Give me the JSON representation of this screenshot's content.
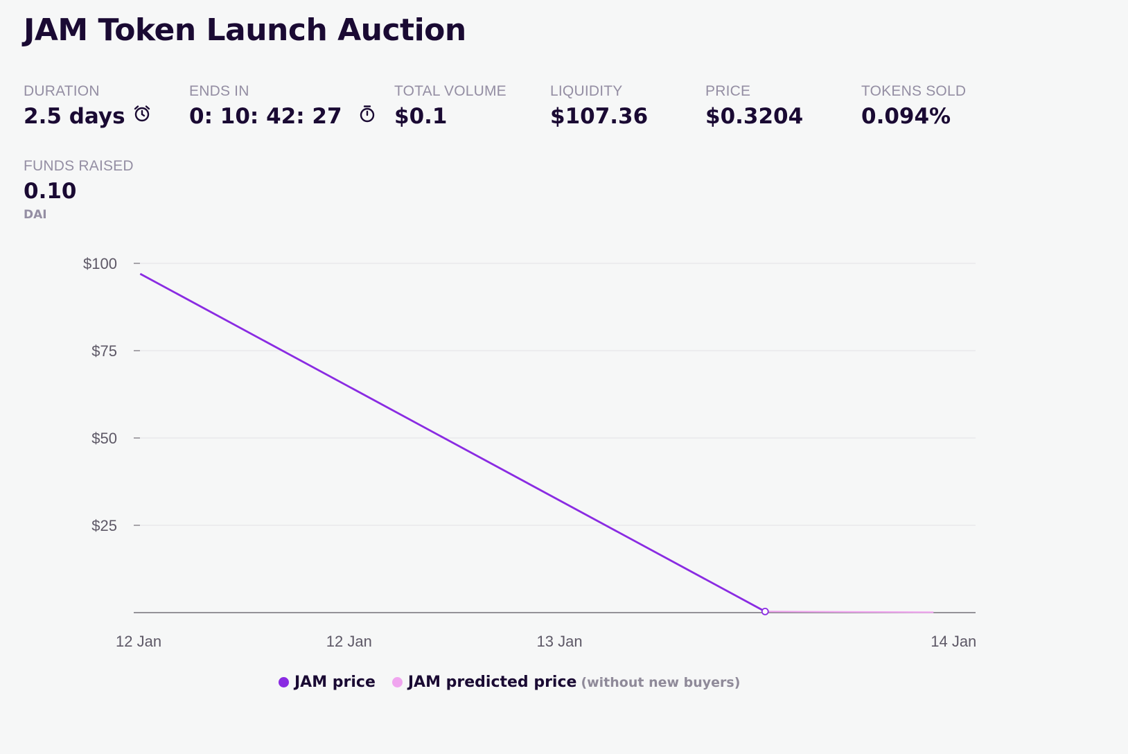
{
  "page": {
    "title": "JAM Token Launch Auction"
  },
  "stats": {
    "duration": {
      "label": "DURATION",
      "value": "2.5 days"
    },
    "ends_in": {
      "label": "ENDS IN",
      "value": "0: 10: 42: 27"
    },
    "total_volume": {
      "label": "TOTAL VOLUME",
      "value": "$0.1"
    },
    "liquidity": {
      "label": "LIQUIDITY",
      "value": "$107.36"
    },
    "price": {
      "label": "PRICE",
      "value": "$0.3204"
    },
    "tokens_sold": {
      "label": "TOKENS SOLD",
      "value": "0.094%"
    },
    "funds_raised": {
      "label": "FUNDS RAISED",
      "value": "0.10",
      "unit": "DAI"
    }
  },
  "icons": {
    "duration": "alarm-clock-icon",
    "ends_in": "stopwatch-icon"
  },
  "colors": {
    "jam_price": "#8a2be2",
    "jam_predicted_price": "#f0a5ef",
    "grid": "#e5e5e8",
    "axis": "#737078"
  },
  "chart_data": {
    "type": "line",
    "y_ticks": [
      {
        "value": 100,
        "label": "$100"
      },
      {
        "value": 75,
        "label": "$75"
      },
      {
        "value": 50,
        "label": "$50"
      },
      {
        "value": 25,
        "label": "$25"
      }
    ],
    "ylim": [
      0,
      100
    ],
    "x_ticks": [
      {
        "t": 0.0,
        "label": "12 Jan"
      },
      {
        "t": 0.65,
        "label": "12 Jan"
      },
      {
        "t": 1.3,
        "label": "13 Jan"
      },
      {
        "t": 2.5,
        "label": "14 Jan"
      }
    ],
    "xlim": [
      0,
      2.6
    ],
    "grid": true,
    "legend_position": "bottom",
    "series": [
      {
        "name": "JAM price",
        "points": [
          {
            "t": 0.02,
            "value": 97
          },
          {
            "t": 1.95,
            "value": 0.32
          }
        ]
      },
      {
        "name": "JAM predicted price",
        "note": "(without new buyers)",
        "points": [
          {
            "t": 1.95,
            "value": 0.32
          },
          {
            "t": 2.47,
            "value": 0.1
          }
        ]
      }
    ]
  }
}
